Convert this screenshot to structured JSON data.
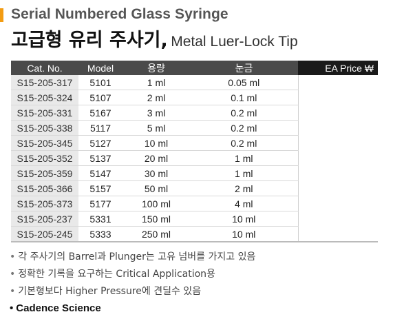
{
  "header": {
    "title_en": "Serial Numbered Glass Syringe",
    "title_kr": "고급형 유리 주사기,",
    "title_sub": "Metal Luer-Lock Tip",
    "accent_color": "#f39c12"
  },
  "table": {
    "columns": [
      "Cat. No.",
      "Model",
      "용량",
      "눈금",
      "EA Price ₩"
    ],
    "rows": [
      [
        "S15-205-317",
        "5101",
        "1 ml",
        "0.05 ml",
        ""
      ],
      [
        "S15-205-324",
        "5107",
        "2 ml",
        "0.1 ml",
        ""
      ],
      [
        "S15-205-331",
        "5167",
        "3 ml",
        "0.2 ml",
        ""
      ],
      [
        "S15-205-338",
        "5117",
        "5 ml",
        "0.2 ml",
        ""
      ],
      [
        "S15-205-345",
        "5127",
        "10 ml",
        "0.2 ml",
        ""
      ],
      [
        "S15-205-352",
        "5137",
        "20 ml",
        "1 ml",
        ""
      ],
      [
        "S15-205-359",
        "5147",
        "30 ml",
        "1 ml",
        ""
      ],
      [
        "S15-205-366",
        "5157",
        "50 ml",
        "2 ml",
        ""
      ],
      [
        "S15-205-373",
        "5177",
        "100 ml",
        "4 ml",
        ""
      ],
      [
        "S15-205-237",
        "5331",
        "150 ml",
        "10 ml",
        ""
      ],
      [
        "S15-205-245",
        "5333",
        "250 ml",
        "10  ml",
        ""
      ]
    ]
  },
  "notes": [
    "각 주사기의 Barrel과 Plunger는 고유 넘버를 가지고 있음",
    "정확한 기록을 요구하는 Critical Application용",
    "기본형보다 Higher Pressure에 견딜수 있음"
  ],
  "brand": "Cadence Science",
  "bullet": "•"
}
